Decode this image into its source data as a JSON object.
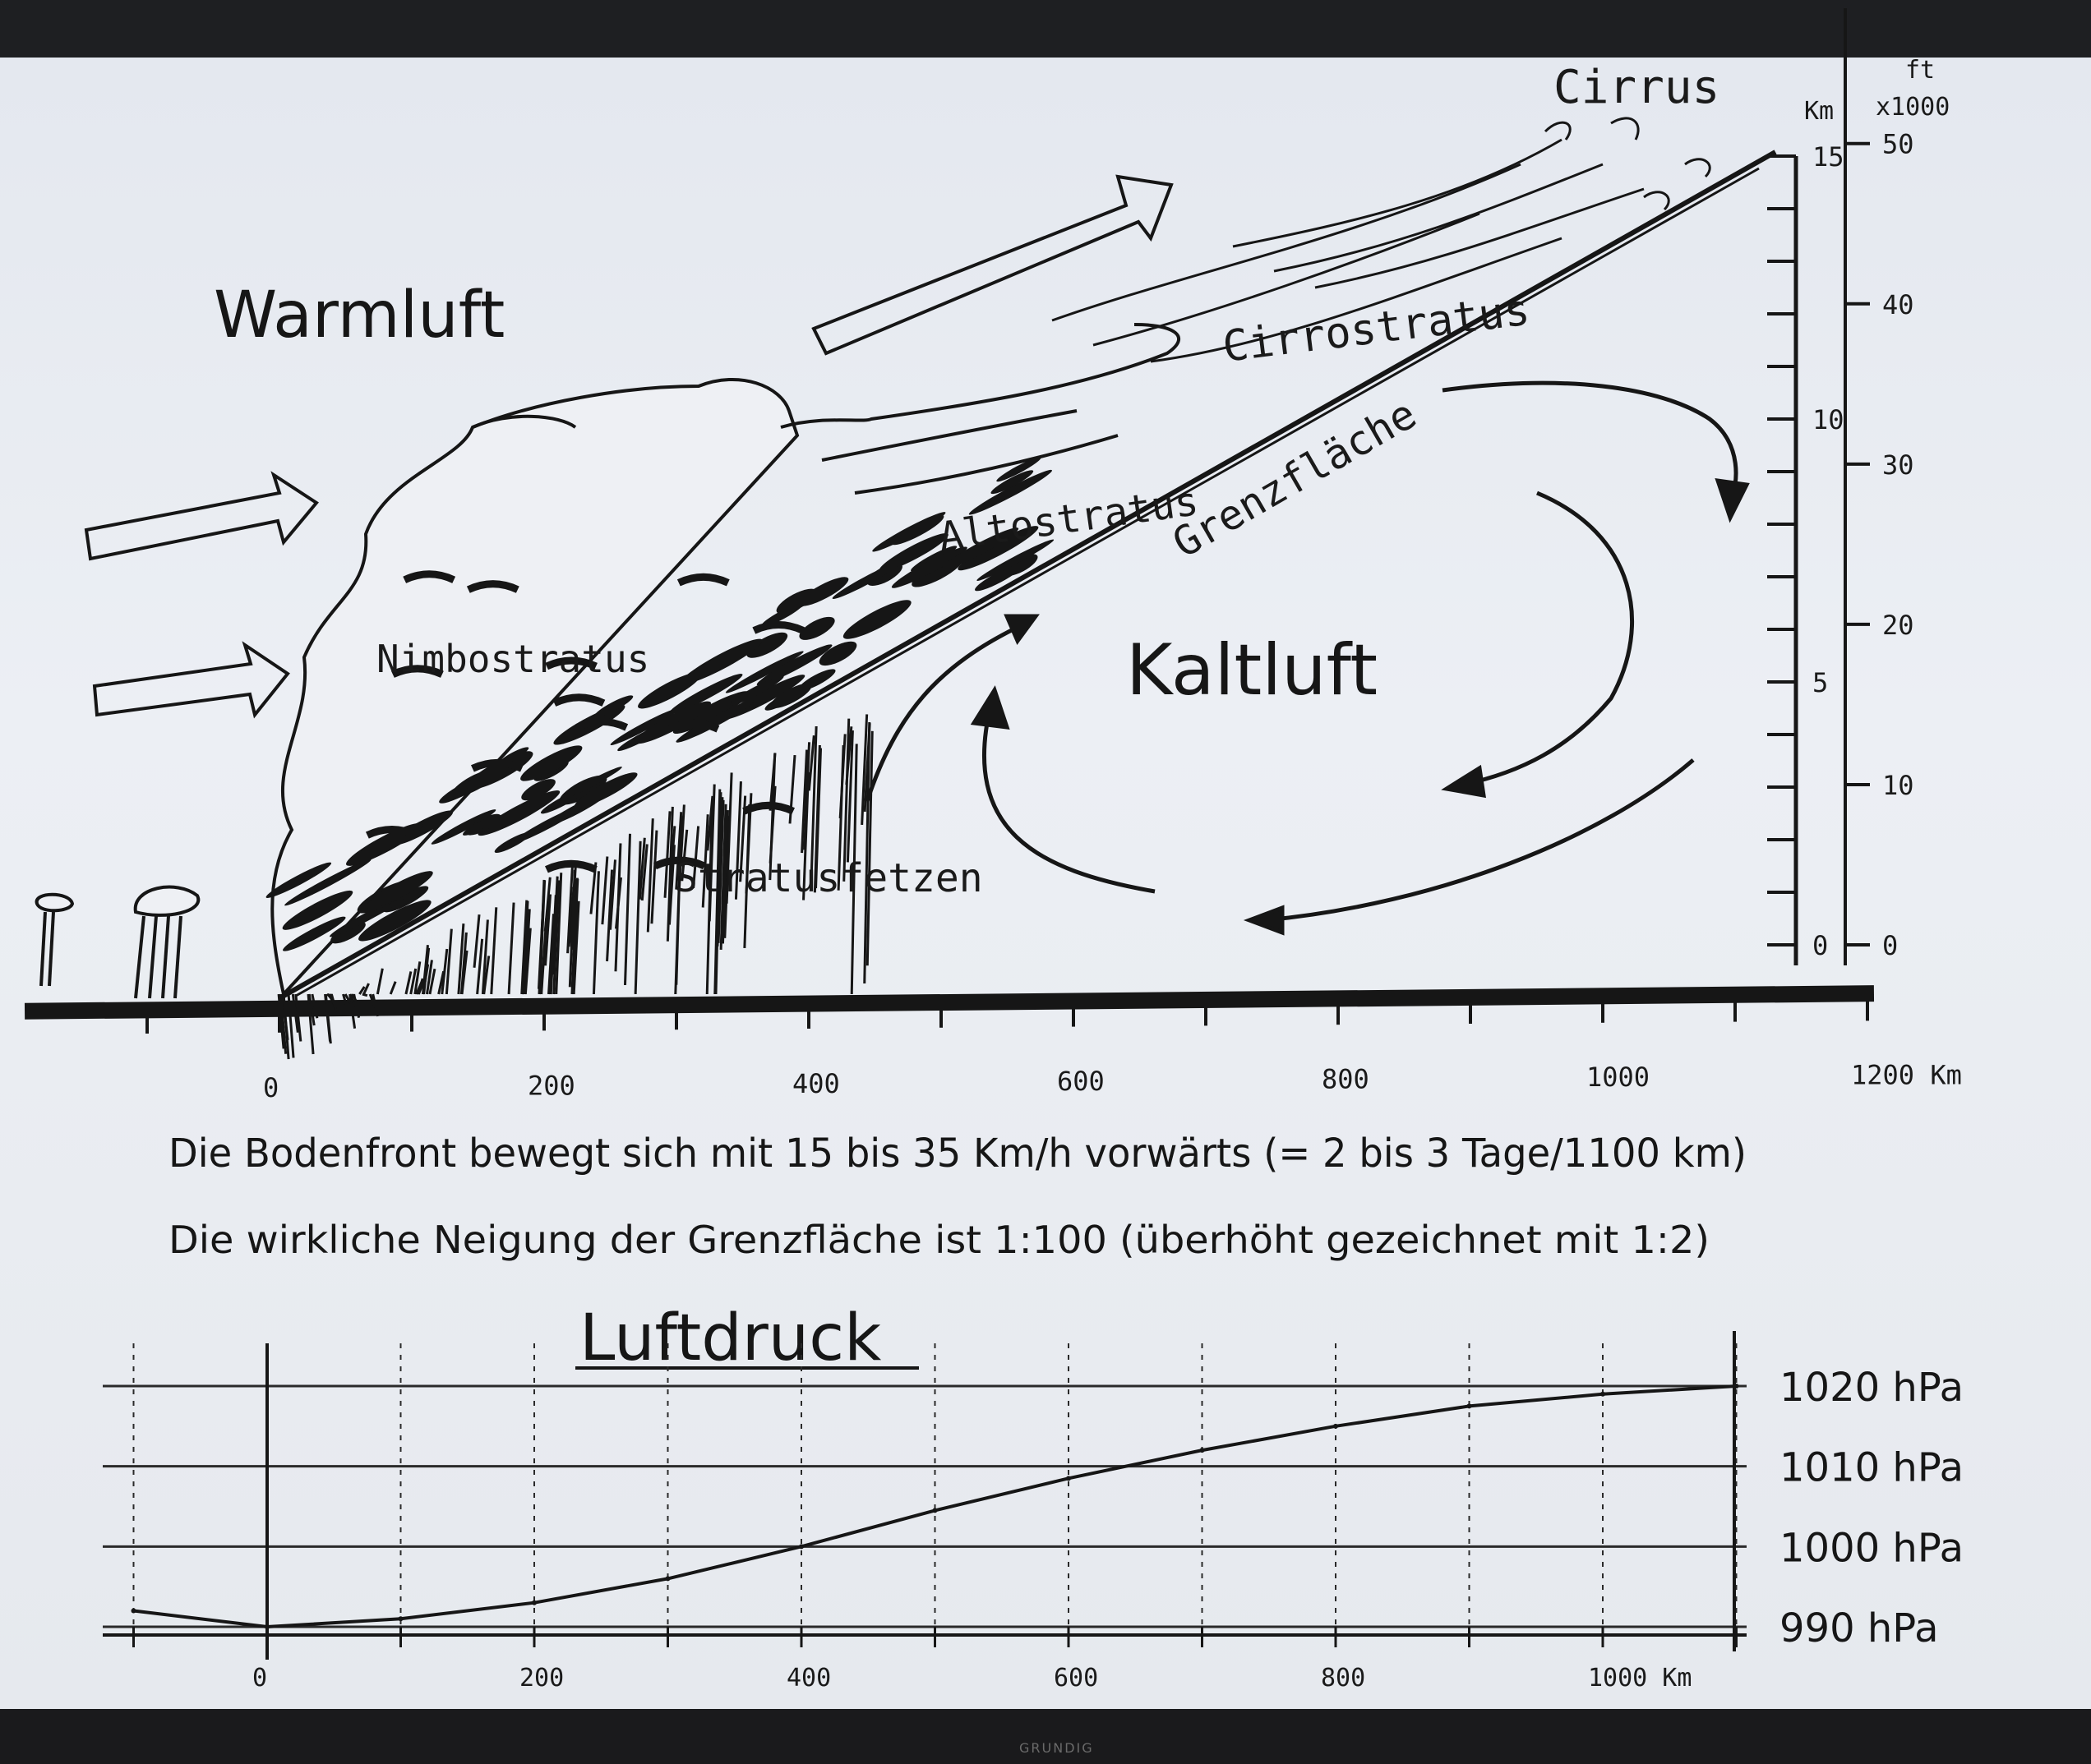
{
  "diagram": {
    "labels": {
      "warmluft": "Warmluft",
      "kaltluft": "Kaltluft",
      "cirrus": "Cirrus",
      "cirrostratus": "Cirrostratus",
      "altostratus": "Altostratus",
      "nimbostratus": "Nimbostratus",
      "stratusfetzen": "Stratusfetzen",
      "grenzflaeche": "Grenzfläche"
    },
    "height_axis": {
      "km_unit": "Km",
      "ft_unit": "ft",
      "ft_multiplier": "x1000",
      "km_ticks": [
        "15",
        "10",
        "5",
        "0"
      ],
      "ft_ticks": [
        "50",
        "40",
        "30",
        "20",
        "10",
        "0"
      ]
    },
    "distance_axis": {
      "ticks": [
        "0",
        "200",
        "400",
        "600",
        "800",
        "1000",
        "1200 Km"
      ]
    },
    "caption_line1": "Die Bodenfront bewegt sich mit 15 bis 35 Km/h vorwärts (= 2 bis 3 Tage/1100 km)",
    "caption_line2": "Die wirkliche Neigung der Grenzfläche ist 1:100 (überhöht gezeichnet mit 1:2)"
  },
  "pressure_chart": {
    "title": "Luftdruck",
    "x_ticks": [
      "0",
      "200",
      "400",
      "600",
      "800",
      "1000 Km"
    ],
    "y_ticks": [
      "1020 hPa",
      "1010 hPa",
      "1000 hPa",
      "990 hPa"
    ]
  },
  "chart_data": {
    "type": "line",
    "title": "Luftdruck",
    "xlabel": "Km",
    "ylabel": "hPa",
    "xlim": [
      -120,
      1130
    ],
    "ylim": [
      990,
      1020
    ],
    "x": [
      -100,
      0,
      100,
      200,
      300,
      400,
      500,
      600,
      700,
      800,
      900,
      1000,
      1100
    ],
    "values": [
      992,
      990,
      991,
      993,
      996,
      1000,
      1004.5,
      1008.5,
      1012,
      1015,
      1017.5,
      1019,
      1020
    ],
    "grid": true
  },
  "colors": {
    "ink": "#161616",
    "screen": "#e8ebf0",
    "bezel": "#1e1f22"
  },
  "footer": {
    "brand": "GRUNDIG"
  }
}
